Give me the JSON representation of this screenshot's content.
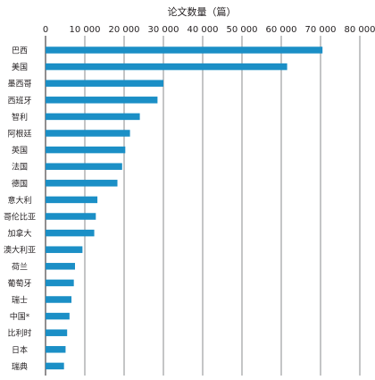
{
  "chart_data": {
    "type": "bar",
    "orientation": "horizontal",
    "xlabel": "论文数量（篇）",
    "xlim": [
      0,
      80000
    ],
    "x_ticks": [
      0,
      10000,
      20000,
      30000,
      40000,
      50000,
      60000,
      70000,
      80000
    ],
    "x_tick_labels": [
      "0",
      "10 000",
      "20 000",
      "30 000",
      "40 000",
      "50 000",
      "60 000",
      "70 000",
      "80 000"
    ],
    "x_axis_position": "top",
    "grid": true,
    "bar_color": "#1b8fc6",
    "categories": [
      "巴西",
      "美国",
      "墨西哥",
      "西班牙",
      "智利",
      "阿根廷",
      "英国",
      "法国",
      "德国",
      "意大利",
      "哥伦比亚",
      "加拿大",
      "澳大利亚",
      "荷兰",
      "葡萄牙",
      "瑞士",
      "中国*",
      "比利时",
      "日本",
      "瑞典"
    ],
    "values": [
      70500,
      61500,
      30000,
      28500,
      24000,
      21500,
      20300,
      19500,
      18300,
      13200,
      12800,
      12400,
      9400,
      7500,
      7200,
      6600,
      6100,
      5500,
      5100,
      4700
    ]
  }
}
